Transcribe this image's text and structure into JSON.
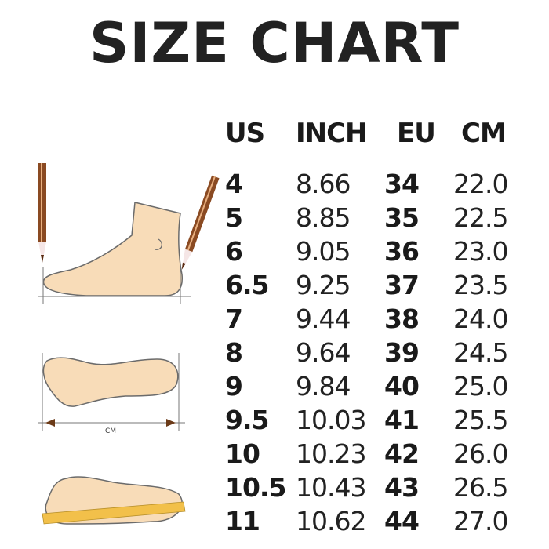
{
  "title": "SIZE CHART",
  "headers": [
    "US",
    "INCH",
    "EU",
    "CM"
  ],
  "rows": [
    [
      "4",
      "8.66",
      "34",
      "22.0"
    ],
    [
      "5",
      "8.85",
      "35",
      "22.5"
    ],
    [
      "6",
      "9.05",
      "36",
      "23.0"
    ],
    [
      "6.5",
      "9.25",
      "37",
      "23.5"
    ],
    [
      "7",
      "9.44",
      "38",
      "24.0"
    ],
    [
      "8",
      "9.64",
      "39",
      "24.5"
    ],
    [
      "9",
      "9.84",
      "40",
      "25.0"
    ],
    [
      "9.5",
      "10.03",
      "41",
      "25.5"
    ],
    [
      "10",
      "10.23",
      "42",
      "26.0"
    ],
    [
      "10.5",
      "10.43",
      "43",
      "26.5"
    ],
    [
      "11",
      "10.62",
      "44",
      "27.0"
    ]
  ],
  "illustration": {
    "measure_label": "CM"
  },
  "colors": {
    "skin": "#f8dcb8",
    "outline": "#6b6b6b",
    "pencil": "#8a4a22",
    "ruler": "#f2c04a"
  }
}
